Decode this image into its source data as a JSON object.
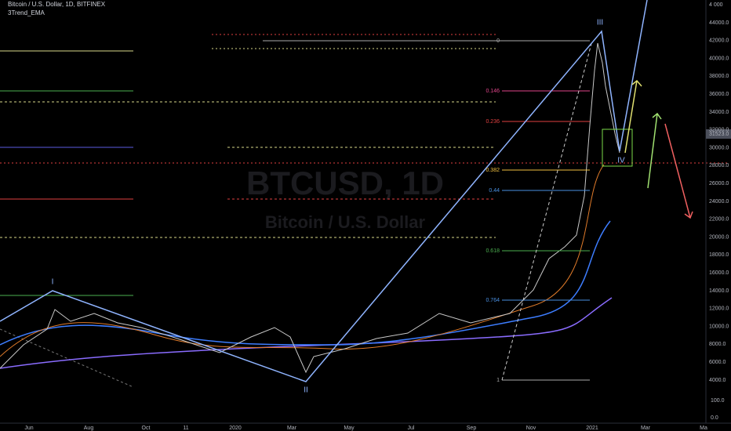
{
  "header": {
    "symbol": "Bitcoin / U.S. Dollar, 1D, BITFINEX",
    "indicator": "3Trend_EMA"
  },
  "watermark": {
    "ticker": "BTCUSD, 1D",
    "name": "Bitcoin / U.S. Dollar"
  },
  "price_axis": {
    "top": "4 000",
    "labels": [
      "44000.0",
      "42000.0",
      "40000.0",
      "38000.0",
      "36000.0",
      "34000.0",
      "32000.0",
      "30000.0",
      "28000.0",
      "26000.0",
      "24000.0",
      "22000.0",
      "20000.0",
      "18000.0",
      "16000.0",
      "14000.0",
      "12000.0",
      "10000.0",
      "8000.0",
      "6000.0",
      "4000.0"
    ],
    "lower": [
      "100.0",
      "0.0"
    ],
    "current": "31523.0"
  },
  "time_axis": {
    "labels": [
      "Jun",
      "Aug",
      "Oct",
      "11",
      "2020",
      "Mar",
      "May",
      "Jul",
      "Sep",
      "Nov",
      "2021",
      "Mar",
      "Ma"
    ]
  },
  "fib_levels": [
    "0",
    "0.146",
    "0.236",
    "0.382",
    "0.44",
    "0.618",
    "0.764",
    "1"
  ],
  "waves": [
    "I",
    "II",
    "III",
    "IV"
  ]
}
